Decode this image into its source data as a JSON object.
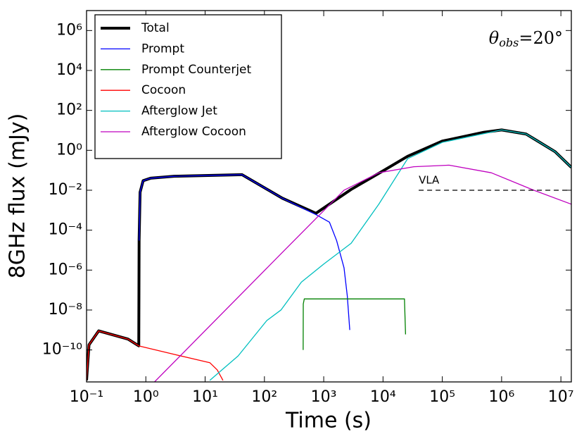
{
  "chart_data": {
    "type": "line",
    "xlabel": "Time (s)",
    "ylabel": "8GHz flux (mJy)",
    "xscale": "log",
    "yscale": "log",
    "xlim": [
      0.1,
      15000000
    ],
    "ylim": [
      2.5e-12,
      10000000
    ],
    "xticks": [
      {
        "value": 0.1,
        "label": "10⁻¹"
      },
      {
        "value": 1,
        "label": "10⁰"
      },
      {
        "value": 10,
        "label": "10¹"
      },
      {
        "value": 100,
        "label": "10²"
      },
      {
        "value": 1000,
        "label": "10³"
      },
      {
        "value": 10000,
        "label": "10⁴"
      },
      {
        "value": 100000,
        "label": "10⁵"
      },
      {
        "value": 1000000,
        "label": "10⁶"
      },
      {
        "value": 10000000,
        "label": "10⁷"
      }
    ],
    "yticks": [
      {
        "value": 1e-10,
        "label": "10⁻¹⁰"
      },
      {
        "value": 1e-08,
        "label": "10⁻⁸"
      },
      {
        "value": 1e-06,
        "label": "10⁻⁶"
      },
      {
        "value": 0.0001,
        "label": "10⁻⁴"
      },
      {
        "value": 0.01,
        "label": "10⁻²"
      },
      {
        "value": 1,
        "label": "10⁰"
      },
      {
        "value": 100,
        "label": "10²"
      },
      {
        "value": 10000,
        "label": "10⁴"
      },
      {
        "value": 1000000,
        "label": "10⁶"
      }
    ],
    "legend": "upper left",
    "annotation": {
      "symbol": "θ",
      "subscript": "obs",
      "text": "=20°"
    },
    "reference_line": {
      "label": "VLA",
      "x": [
        40000,
        15000000
      ],
      "value": 0.01
    },
    "series": [
      {
        "name": "Total",
        "color": "#000000",
        "linewidth": 4,
        "x": [
          0.1,
          0.11,
          0.16,
          0.5,
          0.76,
          0.77,
          0.8,
          0.9,
          1.2,
          3,
          42,
          200,
          740,
          2900,
          8500,
          26000,
          100000,
          500000,
          1000000,
          2600000,
          8000000,
          15000000
        ],
        "values": [
          3e-12,
          1.8e-10,
          9e-10,
          3.5e-10,
          1.6e-10,
          3e-05,
          0.008,
          0.03,
          0.04,
          0.05,
          0.06,
          0.004,
          0.0007,
          0.011,
          0.07,
          0.5,
          2.9,
          8,
          10.5,
          6.5,
          0.85,
          0.14
        ]
      },
      {
        "name": "Prompt",
        "color": "#0000ff",
        "linewidth": 1.3,
        "x": [
          0.77,
          0.8,
          0.9,
          1.2,
          3,
          42,
          200,
          740,
          1250,
          1650,
          2200,
          2500,
          2750
        ],
        "values": [
          3e-05,
          0.008,
          0.03,
          0.04,
          0.05,
          0.06,
          0.004,
          0.0006,
          0.00025,
          3e-05,
          1.3e-06,
          5e-08,
          1e-09
        ]
      },
      {
        "name": "Prompt Counterjet",
        "color": "#008000",
        "linewidth": 1.3,
        "x": [
          450,
          452,
          470,
          23000,
          24000
        ],
        "values": [
          1e-10,
          2e-08,
          3.6e-08,
          3.6e-08,
          6e-10
        ]
      },
      {
        "name": "Cocoon",
        "color": "#ff0000",
        "linewidth": 1.3,
        "x": [
          0.1,
          0.11,
          0.16,
          0.5,
          0.76,
          3,
          12,
          16,
          20
        ],
        "values": [
          3e-12,
          1.8e-10,
          9e-10,
          3.5e-10,
          1.6e-10,
          6e-11,
          2.3e-11,
          1e-11,
          3e-12
        ]
      },
      {
        "name": "Afterglow Jet",
        "color": "#00bfbf",
        "linewidth": 1.3,
        "x": [
          12,
          36,
          110,
          190,
          420,
          1000,
          2900,
          8500,
          26000,
          100000,
          1000000,
          2600000,
          8000000,
          15000000
        ],
        "values": [
          3e-12,
          5e-11,
          3e-09,
          1e-08,
          2.5e-07,
          2e-06,
          2.2e-05,
          0.002,
          0.38,
          2.5,
          10.5,
          6.5,
          0.85,
          0.14
        ]
      },
      {
        "name": "Afterglow Cocoon",
        "color": "#bf00bf",
        "linewidth": 1.3,
        "x": [
          1.4,
          200,
          2200,
          8500,
          33000,
          130000,
          670000,
          3500000,
          15000000
        ],
        "values": [
          2.5e-12,
          7.6e-06,
          0.01,
          0.075,
          0.15,
          0.18,
          0.075,
          0.01,
          0.002
        ]
      }
    ]
  }
}
